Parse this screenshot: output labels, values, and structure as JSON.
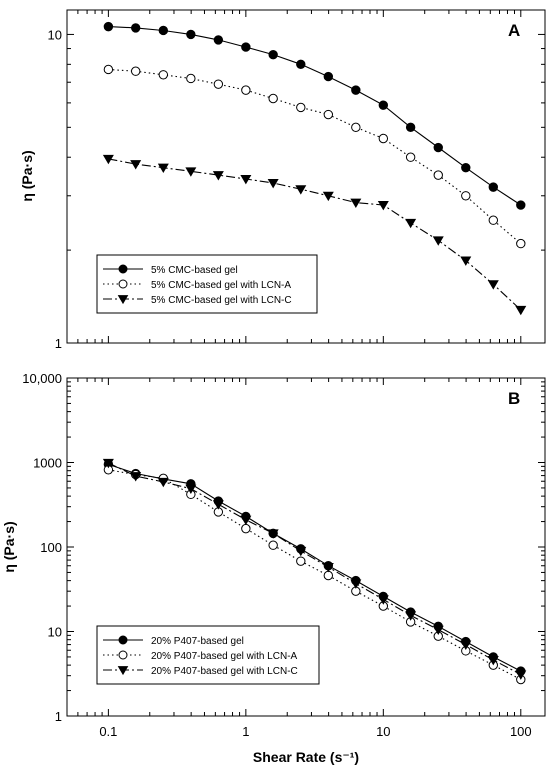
{
  "chart_data": [
    {
      "type": "line",
      "panel_label": "A",
      "xscale": "log",
      "yscale": "log",
      "xlim": [
        0.05,
        150
      ],
      "ylim": [
        1,
        12
      ],
      "xlabel": "",
      "ylabel": "η (Pa·s)",
      "xticks": [
        {
          "value": 0.1,
          "label": ""
        },
        {
          "value": 1,
          "label": ""
        },
        {
          "value": 10,
          "label": ""
        },
        {
          "value": 100,
          "label": ""
        }
      ],
      "yticks": [
        {
          "value": 1,
          "label": "1"
        },
        {
          "value": 10,
          "label": "10"
        }
      ],
      "legend_position": "bottom-left",
      "x": [
        0.1,
        0.158,
        0.251,
        0.398,
        0.631,
        1,
        1.58,
        2.51,
        3.98,
        6.31,
        10,
        15.8,
        25.1,
        39.8,
        63.1,
        100
      ],
      "series": [
        {
          "name": "5% CMC-based gel",
          "marker": "filled-circle",
          "line": "solid",
          "values": [
            10.6,
            10.5,
            10.3,
            10.0,
            9.6,
            9.1,
            8.6,
            8.0,
            7.3,
            6.6,
            5.9,
            5.0,
            4.3,
            3.7,
            3.2,
            2.8
          ]
        },
        {
          "name": "5% CMC-based gel with LCN-A",
          "marker": "open-circle",
          "line": "dotted",
          "values": [
            7.7,
            7.6,
            7.4,
            7.2,
            6.9,
            6.6,
            6.2,
            5.8,
            5.5,
            5.0,
            4.6,
            4.0,
            3.5,
            3.0,
            2.5,
            2.1
          ]
        },
        {
          "name": "5% CMC-based gel with LCN-C",
          "marker": "filled-triangle-down",
          "line": "dashed",
          "values": [
            3.95,
            3.8,
            3.7,
            3.6,
            3.5,
            3.4,
            3.3,
            3.15,
            3.0,
            2.85,
            2.8,
            2.45,
            2.15,
            1.85,
            1.55,
            1.28
          ]
        }
      ]
    },
    {
      "type": "line",
      "panel_label": "B",
      "xscale": "log",
      "yscale": "log",
      "xlim": [
        0.05,
        150
      ],
      "ylim": [
        1,
        10000
      ],
      "xlabel": "Shear Rate (s⁻¹)",
      "ylabel": "η (Pa·s)",
      "xticks": [
        {
          "value": 0.1,
          "label": "0.1"
        },
        {
          "value": 1,
          "label": "1"
        },
        {
          "value": 10,
          "label": "10"
        },
        {
          "value": 100,
          "label": "100"
        }
      ],
      "yticks": [
        {
          "value": 1,
          "label": "1"
        },
        {
          "value": 10,
          "label": "10"
        },
        {
          "value": 100,
          "label": "100"
        },
        {
          "value": 1000,
          "label": "1000"
        },
        {
          "value": 10000,
          "label": "10,000"
        }
      ],
      "legend_position": "bottom-left",
      "x": [
        0.1,
        0.158,
        0.251,
        0.398,
        0.631,
        1,
        1.58,
        2.51,
        3.98,
        6.31,
        10,
        15.8,
        25.1,
        39.8,
        63.1,
        100
      ],
      "series": [
        {
          "name": "20% P407-based gel",
          "marker": "filled-circle",
          "line": "solid",
          "values": [
            950,
            740,
            640,
            560,
            350,
            230,
            145,
            95,
            60,
            40,
            26,
            17,
            11.5,
            7.6,
            5.0,
            3.4
          ]
        },
        {
          "name": "20% P407-based gel with LCN-A",
          "marker": "open-circle",
          "line": "dotted",
          "values": [
            820,
            720,
            650,
            420,
            260,
            165,
            105,
            68,
            46,
            30,
            20,
            13,
            8.8,
            5.9,
            4.0,
            2.7
          ]
        },
        {
          "name": "20% P407-based gel with LCN-C",
          "marker": "filled-triangle-down",
          "line": "dashed",
          "values": [
            990,
            690,
            590,
            490,
            320,
            210,
            145,
            90,
            58,
            37,
            24,
            15.5,
            10.5,
            7.0,
            4.6,
            3.1
          ]
        }
      ]
    }
  ]
}
